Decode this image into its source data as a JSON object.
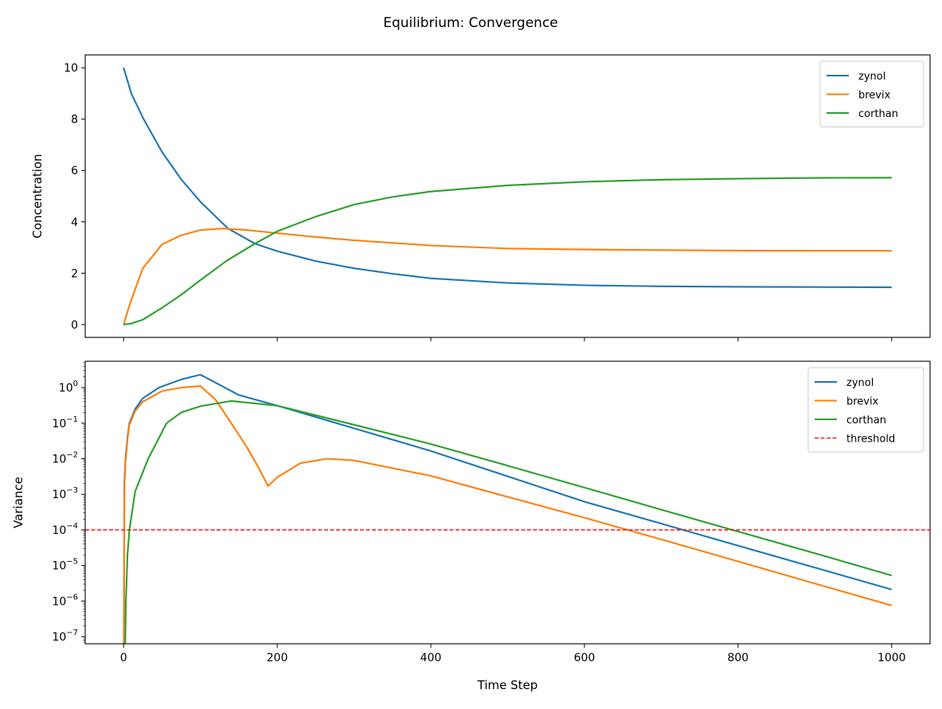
{
  "figure_title": "Equilibrium: Convergence",
  "colors": {
    "zynol": "#1f77b4",
    "brevix": "#ff7f0e",
    "corthan": "#2ca02c",
    "threshold": "#ff0000"
  },
  "chart_data": [
    {
      "type": "line",
      "title": "",
      "xlabel": "",
      "ylabel": "Concentration",
      "xlim": [
        -50,
        1050
      ],
      "ylim": [
        -0.5,
        10.5
      ],
      "xticks": [
        0,
        200,
        400,
        600,
        800,
        1000
      ],
      "xtick_labels_visible": false,
      "yticks": [
        0,
        2,
        4,
        6,
        8,
        10
      ],
      "ytick_labels": [
        "0",
        "2",
        "4",
        "6",
        "8",
        "10"
      ],
      "grid": false,
      "legend_placement": "upper right",
      "series": [
        {
          "name": "zynol",
          "color": "#1f77b4",
          "points": [
            [
              0,
              10
            ],
            [
              10,
              9.0
            ],
            [
              25,
              8.06
            ],
            [
              50,
              6.72
            ],
            [
              75,
              5.65
            ],
            [
              100,
              4.78
            ],
            [
              136,
              3.74
            ],
            [
              171,
              3.15
            ],
            [
              200,
              2.86
            ],
            [
              250,
              2.47
            ],
            [
              300,
              2.19
            ],
            [
              350,
              1.98
            ],
            [
              400,
              1.8
            ],
            [
              500,
              1.62
            ],
            [
              600,
              1.53
            ],
            [
              700,
              1.49
            ],
            [
              800,
              1.47
            ],
            [
              900,
              1.46
            ],
            [
              1000,
              1.45
            ]
          ]
        },
        {
          "name": "brevix",
          "color": "#ff7f0e",
          "points": [
            [
              0,
              0
            ],
            [
              5,
              0.5
            ],
            [
              10,
              0.96
            ],
            [
              25,
              2.19
            ],
            [
              50,
              3.12
            ],
            [
              75,
              3.48
            ],
            [
              100,
              3.68
            ],
            [
              130,
              3.74
            ],
            [
              160,
              3.68
            ],
            [
              200,
              3.56
            ],
            [
              250,
              3.41
            ],
            [
              300,
              3.28
            ],
            [
              400,
              3.08
            ],
            [
              500,
              2.96
            ],
            [
              600,
              2.92
            ],
            [
              700,
              2.9
            ],
            [
              800,
              2.88
            ],
            [
              900,
              2.87
            ],
            [
              1000,
              2.87
            ]
          ]
        },
        {
          "name": "corthan",
          "color": "#2ca02c",
          "points": [
            [
              0,
              0
            ],
            [
              10,
              0.04
            ],
            [
              25,
              0.19
            ],
            [
              50,
              0.65
            ],
            [
              75,
              1.16
            ],
            [
              100,
              1.73
            ],
            [
              135,
              2.5
            ],
            [
              171,
              3.15
            ],
            [
              200,
              3.63
            ],
            [
              250,
              4.2
            ],
            [
              300,
              4.67
            ],
            [
              350,
              4.97
            ],
            [
              400,
              5.18
            ],
            [
              500,
              5.42
            ],
            [
              600,
              5.56
            ],
            [
              700,
              5.64
            ],
            [
              800,
              5.68
            ],
            [
              900,
              5.71
            ],
            [
              1000,
              5.72
            ]
          ]
        }
      ]
    },
    {
      "type": "line",
      "title": "",
      "xlabel": "Time Step",
      "ylabel": "Variance",
      "xlim": [
        -50,
        1050
      ],
      "yscale": "log",
      "ylim": [
        6.3e-08,
        5.5
      ],
      "xticks": [
        0,
        200,
        400,
        600,
        800,
        1000
      ],
      "xtick_labels": [
        "0",
        "200",
        "400",
        "600",
        "800",
        "1000"
      ],
      "yticks_exponents": [
        0,
        -1,
        -2,
        -3,
        -4,
        -5,
        -6,
        -7
      ],
      "ytick_base": "10",
      "grid": false,
      "legend_placement": "upper right",
      "series": [
        {
          "name": "zynol",
          "color": "#1f77b4",
          "points": [
            [
              0.3,
              1e-08
            ],
            [
              1,
              0.002
            ],
            [
              2.5,
              0.01
            ],
            [
              5,
              0.04
            ],
            [
              7.5,
              0.1
            ],
            [
              15,
              0.25
            ],
            [
              25,
              0.5
            ],
            [
              46,
              1.0
            ],
            [
              75,
              1.7
            ],
            [
              100,
              2.3
            ],
            [
              150,
              0.62
            ],
            [
              200,
              0.31
            ],
            [
              300,
              0.072
            ],
            [
              400,
              0.0166
            ],
            [
              500,
              0.0032
            ],
            [
              600,
              0.00062
            ],
            [
              700,
              0.00015
            ],
            [
              800,
              3.6e-05
            ],
            [
              900,
              8.7e-06
            ],
            [
              1000,
              2.1e-06
            ]
          ]
        },
        {
          "name": "brevix",
          "color": "#ff7f0e",
          "points": [
            [
              0.3,
              1e-08
            ],
            [
              1,
              0.0015
            ],
            [
              2.5,
              0.008
            ],
            [
              5,
              0.035
            ],
            [
              7.5,
              0.09
            ],
            [
              15,
              0.22
            ],
            [
              25,
              0.4
            ],
            [
              50,
              0.8
            ],
            [
              75,
              1.0
            ],
            [
              100,
              1.1
            ],
            [
              120,
              0.45
            ],
            [
              140,
              0.1
            ],
            [
              160,
              0.022
            ],
            [
              175,
              0.006
            ],
            [
              188,
              0.0017
            ],
            [
              200,
              0.003
            ],
            [
              230,
              0.0075
            ],
            [
              265,
              0.01
            ],
            [
              300,
              0.009
            ],
            [
              400,
              0.0033
            ],
            [
              500,
              0.00085
            ],
            [
              600,
              0.00022
            ],
            [
              700,
              5.4e-05
            ],
            [
              800,
              1.3e-05
            ],
            [
              900,
              3.1e-06
            ],
            [
              1000,
              7.5e-07
            ]
          ]
        },
        {
          "name": "corthan",
          "color": "#2ca02c",
          "points": [
            [
              1.5,
              1e-08
            ],
            [
              3,
              1e-06
            ],
            [
              5,
              2e-05
            ],
            [
              7.5,
              0.0001
            ],
            [
              15,
              0.0012
            ],
            [
              32,
              0.01
            ],
            [
              56,
              0.1
            ],
            [
              75,
              0.2
            ],
            [
              100,
              0.3
            ],
            [
              140,
              0.42
            ],
            [
              200,
              0.31
            ],
            [
              300,
              0.09
            ],
            [
              400,
              0.026
            ],
            [
              500,
              0.0064
            ],
            [
              600,
              0.00155
            ],
            [
              700,
              0.00037
            ],
            [
              800,
              9e-05
            ],
            [
              900,
              2.2e-05
            ],
            [
              1000,
              5.2e-06
            ]
          ]
        },
        {
          "name": "threshold",
          "color": "#ff0000",
          "dashed": true,
          "hline": 0.0001
        }
      ]
    }
  ]
}
